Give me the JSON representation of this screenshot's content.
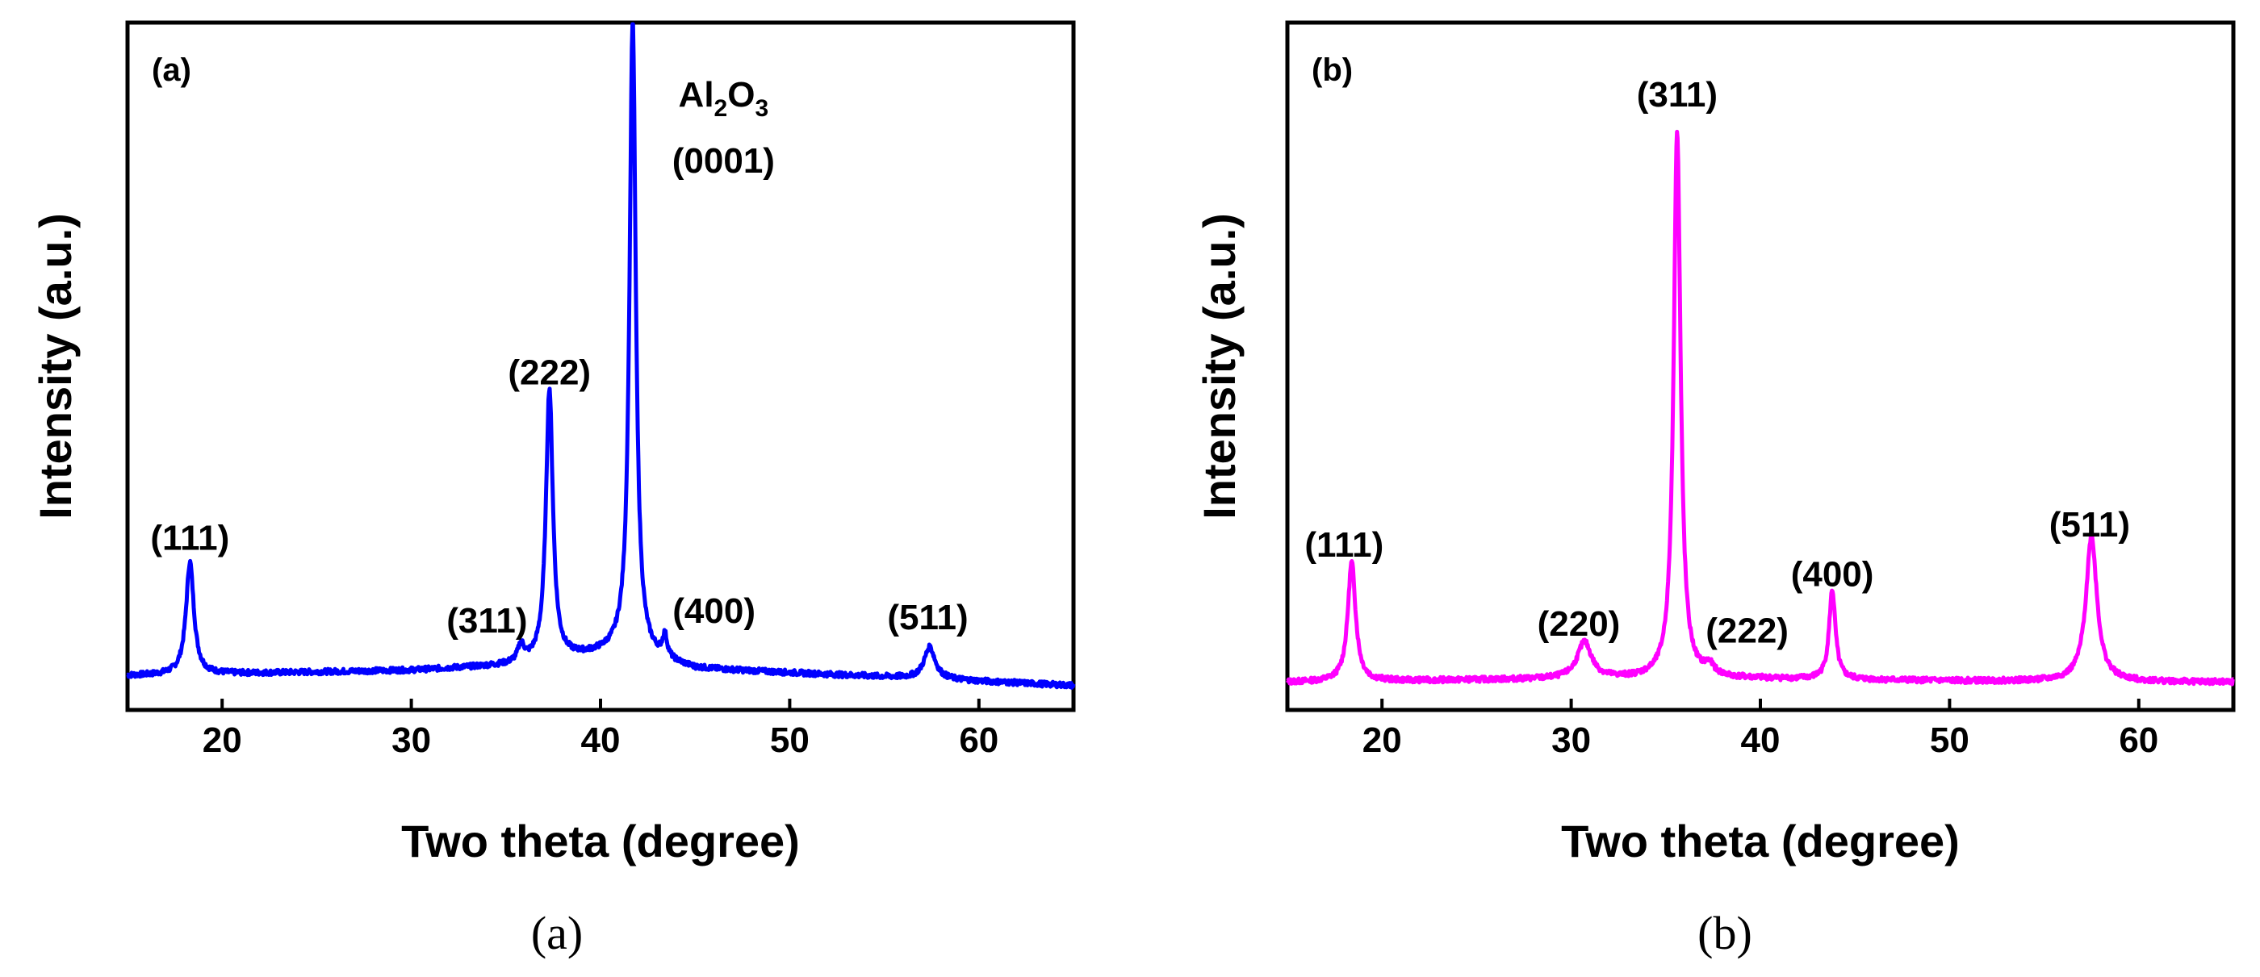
{
  "chart_data": [
    {
      "type": "line",
      "panel_tag": "(a)",
      "caption": "(a)",
      "xlabel": "Two theta (degree)",
      "ylabel": "Intensity (a.u.)",
      "xlim": [
        15,
        65
      ],
      "ylim": [
        0,
        100
      ],
      "xticks": [
        20,
        30,
        40,
        50,
        60
      ],
      "xtick_labels": [
        "20",
        "30",
        "40",
        "50",
        "60"
      ],
      "yticks": [],
      "color": "#0000ff",
      "baseline": [
        [
          15,
          3.0
        ],
        [
          30,
          3.8
        ],
        [
          35,
          4.5
        ],
        [
          41,
          6.5
        ],
        [
          45,
          4.0
        ],
        [
          55,
          2.8
        ],
        [
          65,
          1.5
        ]
      ],
      "peaks": [
        {
          "x": 18.3,
          "height": 17,
          "width": 0.25
        },
        {
          "x": 35.8,
          "height": 2.5,
          "width": 0.2
        },
        {
          "x": 37.3,
          "height": 41,
          "width": 0.22
        },
        {
          "x": 41.7,
          "height": 96,
          "width": 0.2
        },
        {
          "x": 43.4,
          "height": 3.3,
          "width": 0.15
        },
        {
          "x": 57.4,
          "height": 4.8,
          "width": 0.35
        }
      ],
      "annotations": [
        {
          "text": "(111)",
          "x": 18.3,
          "y": 22
        },
        {
          "text": "(311)",
          "x": 34.0,
          "y": 9.5
        },
        {
          "text": "(222)",
          "x": 37.3,
          "y": 47
        },
        {
          "text": "(400)",
          "x": 46.0,
          "y": 11
        },
        {
          "text": "(511)",
          "x": 57.3,
          "y": 10
        },
        {
          "text": "(0001)",
          "x": 46.5,
          "y": 79
        }
      ],
      "substrate_label": {
        "base": "Al",
        "sub1": "2",
        "mid": "O",
        "sub2": "3",
        "x": 46.5,
        "y": 89
      }
    },
    {
      "type": "line",
      "panel_tag": "(b)",
      "caption": "(b)",
      "xlabel": "Two theta (degree)",
      "ylabel": "Intensity (a.u.)",
      "xlim": [
        15,
        65
      ],
      "ylim": [
        0,
        100
      ],
      "xticks": [
        20,
        30,
        40,
        50,
        60
      ],
      "xtick_labels": [
        "20",
        "30",
        "40",
        "50",
        "60"
      ],
      "yticks": [],
      "color": "#ff00ff",
      "baseline": [
        [
          15,
          2.0
        ],
        [
          30,
          2.5
        ],
        [
          40,
          2.5
        ],
        [
          50,
          2.2
        ],
        [
          65,
          2.0
        ]
      ],
      "peaks": [
        {
          "x": 18.4,
          "height": 18,
          "width": 0.25
        },
        {
          "x": 30.7,
          "height": 5.5,
          "width": 0.45
        },
        {
          "x": 35.6,
          "height": 83,
          "width": 0.22
        },
        {
          "x": 37.3,
          "height": 1.5,
          "width": 0.3
        },
        {
          "x": 43.8,
          "height": 13.5,
          "width": 0.2
        },
        {
          "x": 57.5,
          "height": 22,
          "width": 0.35
        }
      ],
      "annotations": [
        {
          "text": "(111)",
          "x": 18.0,
          "y": 21
        },
        {
          "text": "(220)",
          "x": 30.4,
          "y": 9
        },
        {
          "text": "(311)",
          "x": 35.6,
          "y": 89
        },
        {
          "text": "(222)",
          "x": 39.3,
          "y": 8
        },
        {
          "text": "(400)",
          "x": 43.8,
          "y": 16.5
        },
        {
          "text": "(511)",
          "x": 57.4,
          "y": 24
        }
      ]
    }
  ]
}
